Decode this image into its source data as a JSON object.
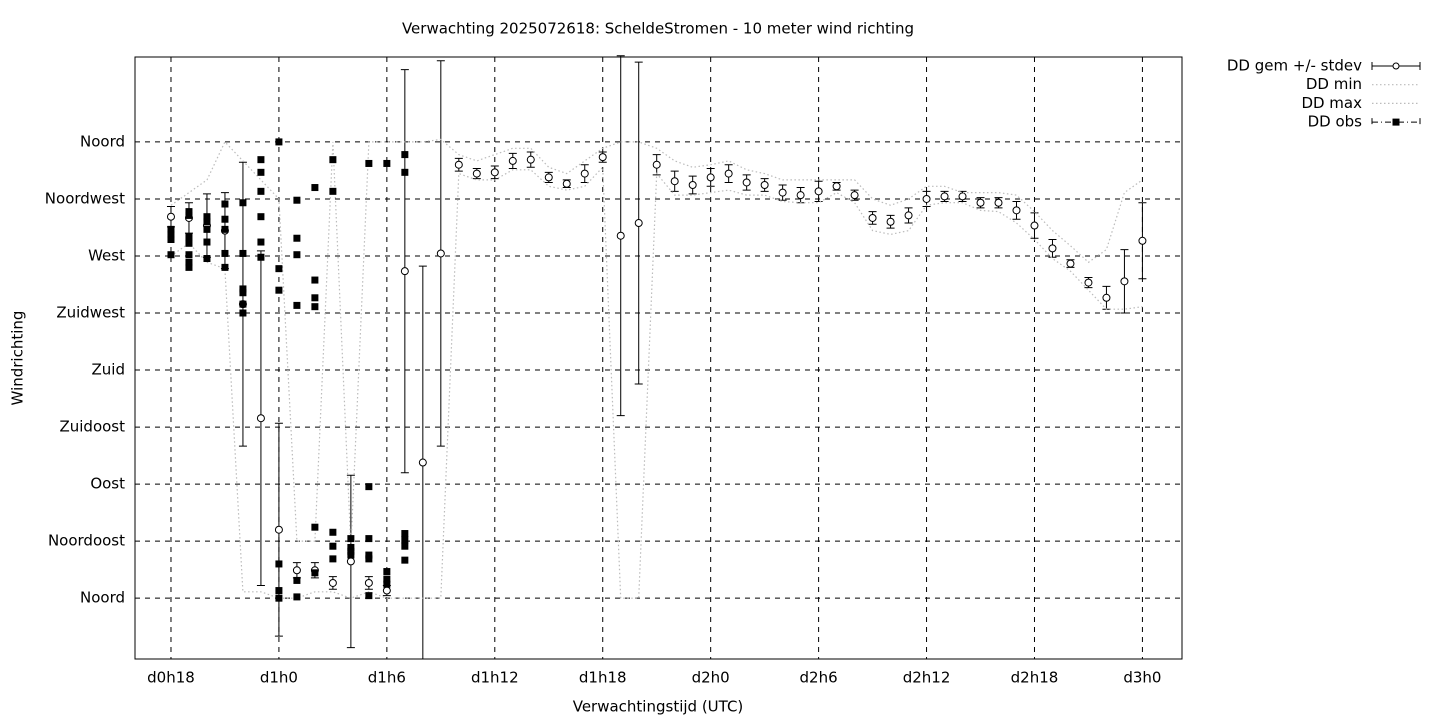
{
  "chart_data": {
    "type": "errorbar",
    "title": "Verwachting 2025072618: ScheldeStromen - 10 meter wind richting",
    "x_label": "Verwachtingstijd (UTC)",
    "y_label": "Windrichting",
    "xlim": [
      16,
      74.2
    ],
    "ylim": [
      -48,
      427
    ],
    "xticks": [
      {
        "value": 18,
        "label": "d0h18"
      },
      {
        "value": 24,
        "label": "d1h0"
      },
      {
        "value": 30,
        "label": "d1h6"
      },
      {
        "value": 36,
        "label": "d1h12"
      },
      {
        "value": 42,
        "label": "d1h18"
      },
      {
        "value": 48,
        "label": "d2h0"
      },
      {
        "value": 54,
        "label": "d2h6"
      },
      {
        "value": 60,
        "label": "d2h12"
      },
      {
        "value": 66,
        "label": "d2h18"
      },
      {
        "value": 72,
        "label": "d3h0"
      }
    ],
    "yticks": [
      {
        "value": 0,
        "label": "Noord"
      },
      {
        "value": 45,
        "label": "Noordoost"
      },
      {
        "value": 90,
        "label": "Oost"
      },
      {
        "value": 135,
        "label": "Zuidoost"
      },
      {
        "value": 180,
        "label": "Zuid"
      },
      {
        "value": 225,
        "label": "Zuidwest"
      },
      {
        "value": 270,
        "label": "West"
      },
      {
        "value": 315,
        "label": "Noordwest"
      },
      {
        "value": 360,
        "label": "Noord"
      }
    ],
    "grid": true,
    "legend": "outside-top-right",
    "series": [
      {
        "name": "DD gem +/- stdev",
        "color": "#000000",
        "x": [
          18,
          19,
          20,
          21,
          22,
          23,
          24,
          25,
          26,
          27,
          28,
          29,
          30,
          31,
          32,
          33,
          34,
          35,
          36,
          37,
          38,
          39,
          40,
          41,
          42,
          43,
          44,
          45,
          46,
          47,
          48,
          49,
          50,
          51,
          52,
          53,
          54,
          55,
          56,
          57,
          58,
          59,
          60,
          61,
          62,
          63,
          64,
          65,
          66,
          67,
          68,
          69,
          70,
          71,
          72
        ],
        "values": [
          301,
          300,
          294,
          290,
          232,
          142,
          54,
          22,
          22,
          12,
          29,
          12,
          6,
          258,
          107,
          272,
          342,
          335,
          336,
          345,
          346,
          332,
          327,
          335,
          348,
          286,
          296,
          342,
          329,
          326,
          332,
          335,
          328,
          326,
          320,
          318,
          321,
          325,
          318,
          300,
          297,
          302,
          315,
          317,
          317,
          312,
          312,
          306,
          294,
          276,
          264,
          249,
          237,
          250,
          282
        ],
        "errors": [
          8,
          12,
          25,
          30,
          112,
          132,
          84,
          6,
          6,
          5,
          68,
          5,
          4,
          159,
          155,
          152,
          5,
          4,
          5,
          6,
          6,
          4,
          3,
          7,
          4,
          142,
          127,
          8,
          8,
          7,
          7,
          7,
          6,
          5,
          6,
          6,
          8,
          3,
          4,
          5,
          5,
          6,
          6,
          4,
          4,
          4,
          4,
          7,
          10,
          7,
          3,
          4,
          9,
          25,
          30
        ]
      },
      {
        "name": "DD min",
        "color": "#bbbbbb",
        "x": [
          18,
          19,
          20,
          21,
          22,
          23,
          24,
          25,
          26,
          27,
          28,
          29,
          30,
          31,
          32,
          33,
          34,
          35,
          36,
          37,
          38,
          39,
          40,
          41,
          42,
          43,
          44,
          45,
          46,
          47,
          48,
          49,
          50,
          51,
          52,
          53,
          54,
          55,
          56,
          57,
          58,
          59,
          60,
          61,
          62,
          63,
          64,
          65,
          66,
          67,
          68,
          69,
          70,
          71,
          72
        ],
        "values": [
          270,
          280,
          265,
          260,
          5,
          5,
          0,
          0,
          5,
          5,
          0,
          5,
          0,
          0,
          0,
          0,
          335,
          330,
          330,
          338,
          338,
          325,
          322,
          325,
          340,
          0,
          0,
          335,
          318,
          318,
          320,
          322,
          318,
          318,
          313,
          312,
          312,
          320,
          312,
          290,
          287,
          290,
          310,
          312,
          312,
          306,
          305,
          296,
          283,
          268,
          258,
          243,
          228,
          228,
          230
        ]
      },
      {
        "name": "DD max",
        "color": "#bbbbbb",
        "x": [
          18,
          19,
          20,
          21,
          22,
          23,
          24,
          25,
          26,
          27,
          28,
          29,
          30,
          31,
          32,
          33,
          34,
          35,
          36,
          37,
          38,
          39,
          40,
          41,
          42,
          43,
          44,
          45,
          46,
          47,
          48,
          49,
          50,
          51,
          52,
          53,
          54,
          55,
          56,
          57,
          58,
          59,
          60,
          61,
          62,
          63,
          64,
          65,
          66,
          67,
          68,
          69,
          70,
          71,
          72
        ],
        "values": [
          310,
          320,
          330,
          360,
          345,
          330,
          315,
          45,
          45,
          360,
          40,
          360,
          360,
          360,
          360,
          362,
          350,
          345,
          350,
          355,
          355,
          340,
          335,
          345,
          355,
          360,
          360,
          355,
          345,
          340,
          342,
          345,
          338,
          335,
          330,
          330,
          330,
          330,
          330,
          315,
          310,
          315,
          325,
          325,
          320,
          320,
          320,
          318,
          305,
          290,
          278,
          265,
          275,
          320,
          330
        ]
      },
      {
        "name": "DD obs",
        "color": "#000000",
        "x": [
          18,
          18,
          18,
          18,
          19,
          19,
          19,
          19,
          19,
          19,
          19,
          20,
          20,
          20,
          20,
          20,
          21,
          21,
          21,
          21,
          21,
          22,
          22,
          22,
          22,
          22,
          22,
          23,
          23,
          23,
          23,
          23,
          23,
          24,
          24,
          24,
          24,
          24,
          24,
          25,
          25,
          25,
          25,
          25,
          25,
          26,
          26,
          26,
          26,
          26,
          26,
          27,
          27,
          27,
          27,
          27,
          28,
          28,
          28,
          28,
          29,
          29,
          29,
          29,
          29,
          29,
          30,
          30,
          30,
          30,
          31,
          31,
          31,
          31,
          31,
          31
        ],
        "values": [
          291,
          287,
          283,
          271,
          305,
          302,
          285,
          280,
          271,
          265,
          261,
          301,
          297,
          291,
          281,
          268,
          311,
          299,
          291,
          272,
          261,
          312,
          272,
          244,
          241,
          232,
          225,
          346,
          336,
          321,
          301,
          281,
          269,
          360,
          260,
          243,
          27,
          6,
          0,
          314,
          284,
          271,
          231,
          14,
          1,
          324,
          251,
          237,
          230,
          56,
          20,
          346,
          321,
          52,
          41,
          31,
          47,
          40,
          37,
          34,
          343,
          88,
          47,
          34,
          31,
          2,
          343,
          21,
          15,
          11,
          350,
          336,
          51,
          46,
          41,
          30
        ]
      }
    ]
  }
}
